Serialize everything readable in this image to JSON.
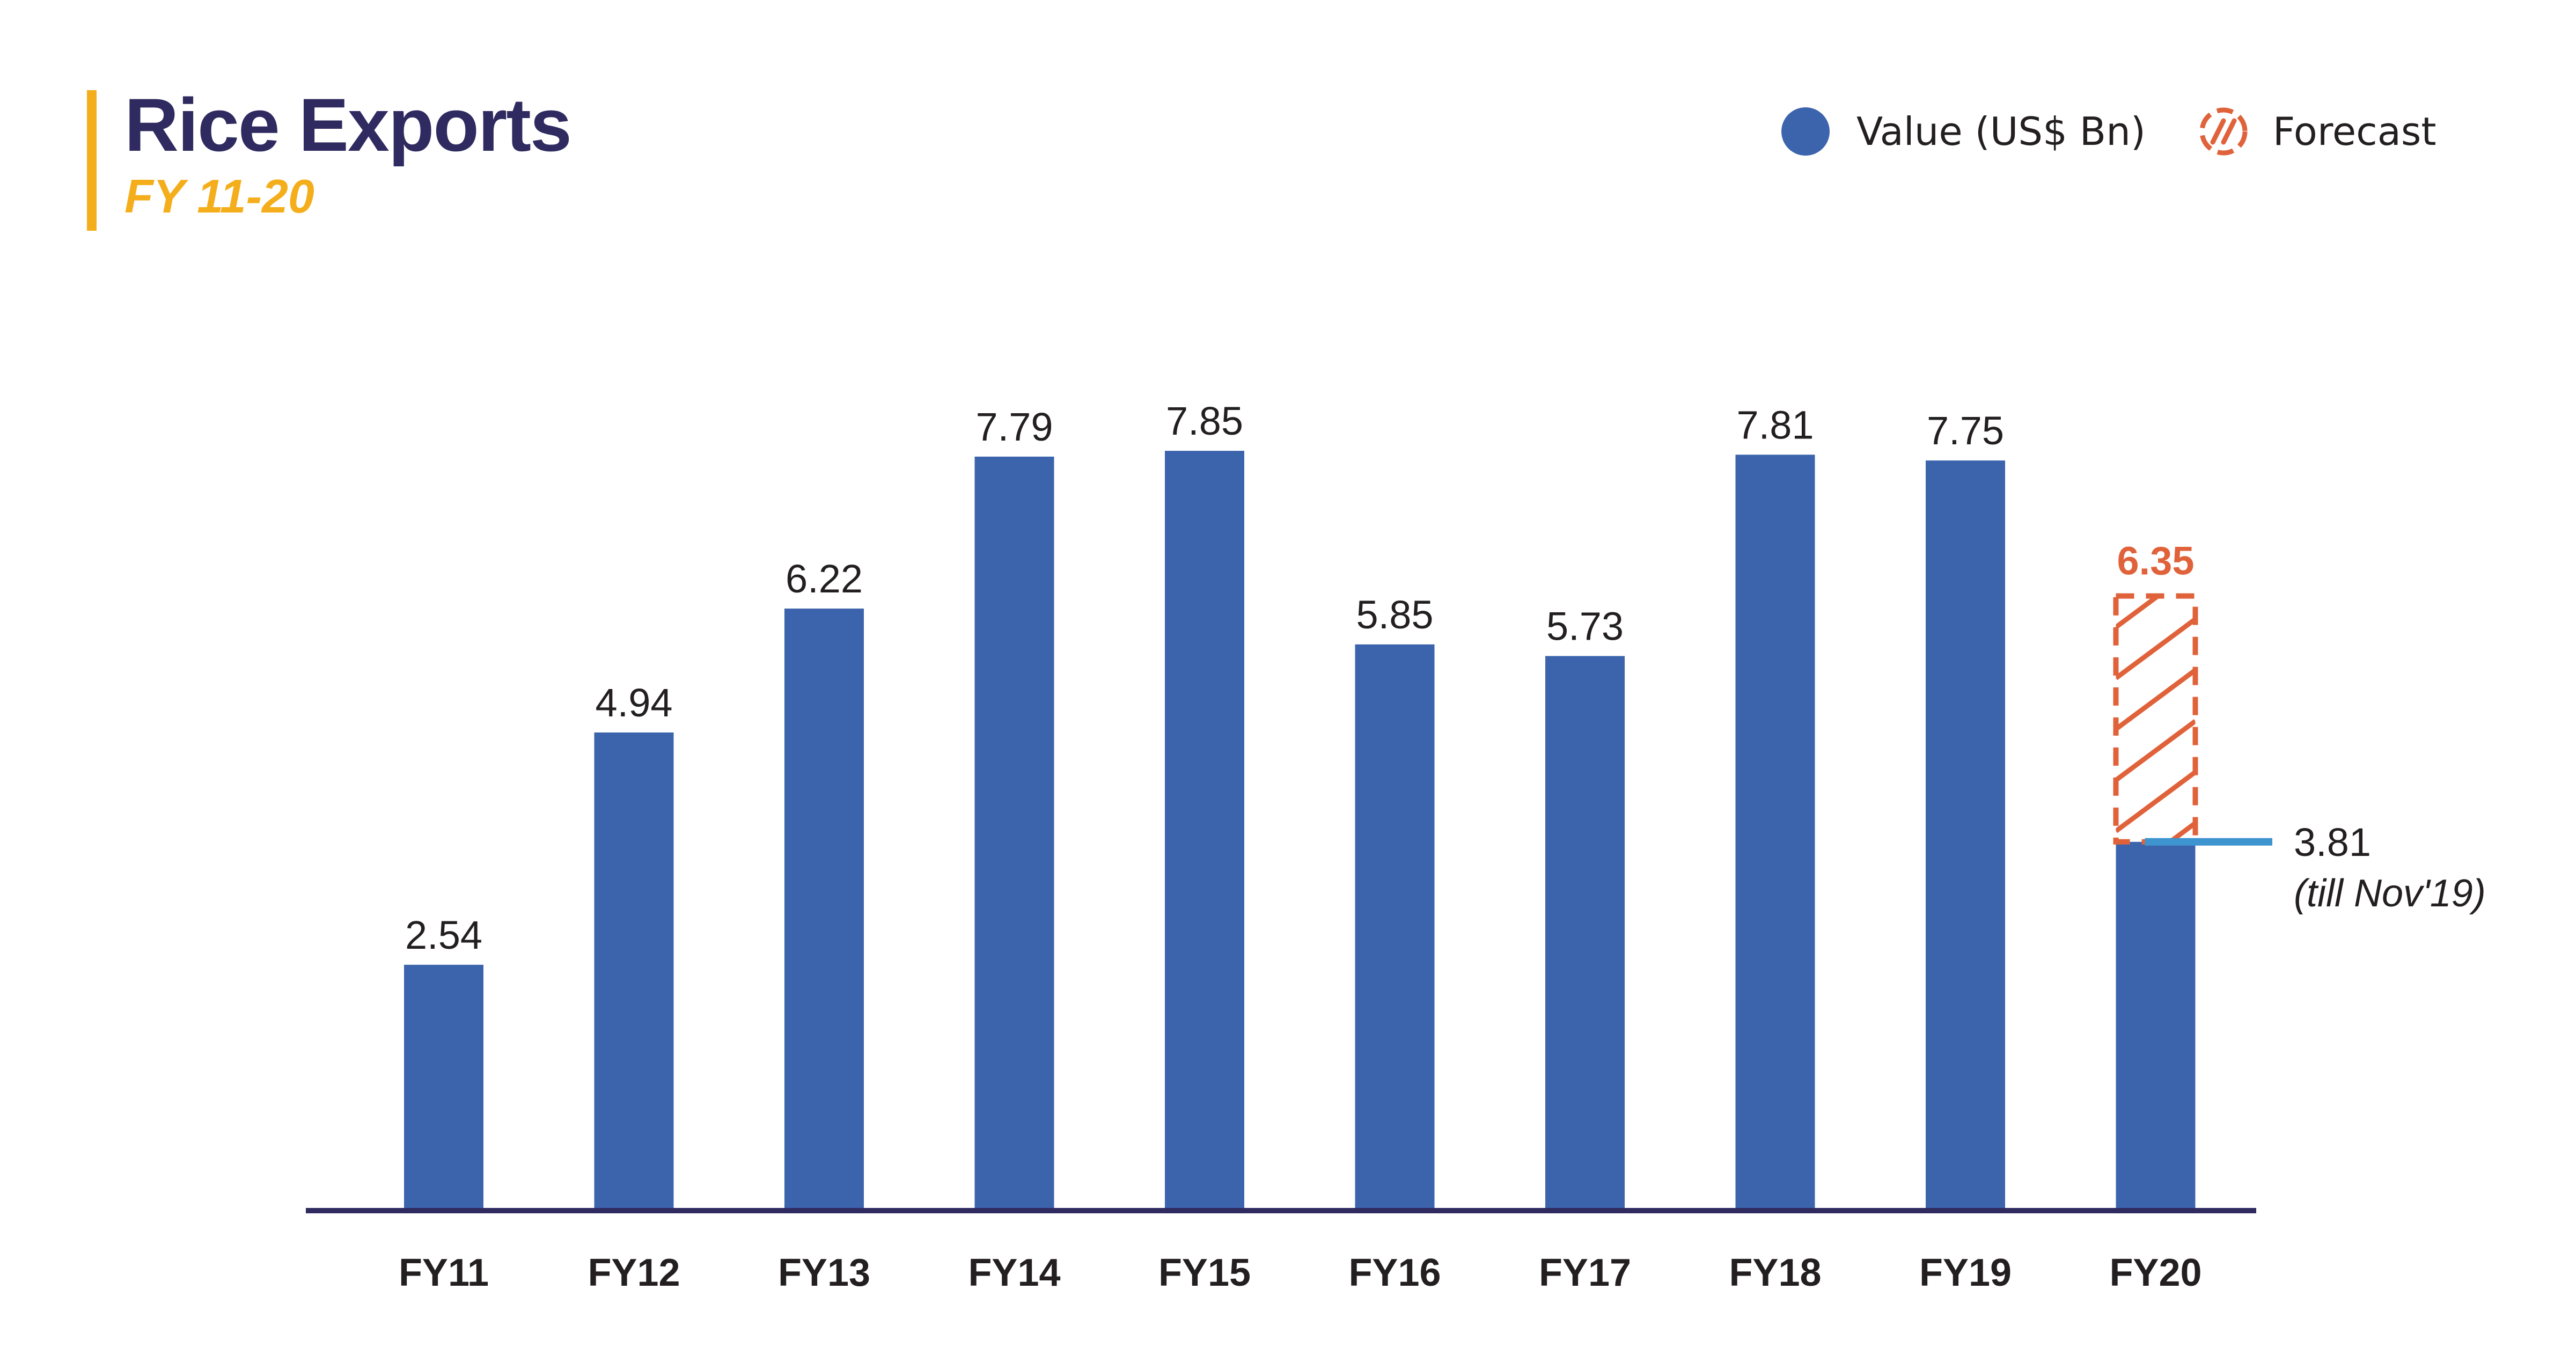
{
  "header": {
    "title": "Rice Exports",
    "subtitle": "FY 11-20"
  },
  "legend": {
    "items": [
      {
        "label": "Value (US$ Bn)",
        "icon": "circle-dot-icon",
        "color": "#3C64AD"
      },
      {
        "label": "Forecast",
        "icon": "hatch-icon",
        "color": "#E0623A"
      }
    ]
  },
  "chart_data": {
    "type": "bar",
    "title": "Rice Exports",
    "subtitle": "FY 11-20",
    "categories": [
      "FY11",
      "FY12",
      "FY13",
      "FY14",
      "FY15",
      "FY16",
      "FY17",
      "FY18",
      "FY19",
      "FY20"
    ],
    "series": [
      {
        "name": "Value (US$ Bn)",
        "color": "#3C64AD",
        "values": [
          2.54,
          4.94,
          6.22,
          7.79,
          7.85,
          5.85,
          5.73,
          7.81,
          7.75,
          3.81
        ],
        "labels": [
          "2.54",
          "4.94",
          "6.22",
          "7.79",
          "7.85",
          "5.85",
          "5.73",
          "7.81",
          "7.75",
          ""
        ]
      },
      {
        "name": "Forecast",
        "color": "#E0623A",
        "style": "hatched-dashed",
        "category": "FY20",
        "base": 3.81,
        "value": 6.35,
        "label": "6.35"
      }
    ],
    "annotation": {
      "category": "FY20",
      "value": 3.81,
      "text": "3.81",
      "note": "(till Nov'19)",
      "color": "#3E94CF"
    },
    "ylim": [
      0,
      8.1
    ],
    "grid": false,
    "legend_position": "top-right",
    "axis_color": "#2F2A5F"
  }
}
